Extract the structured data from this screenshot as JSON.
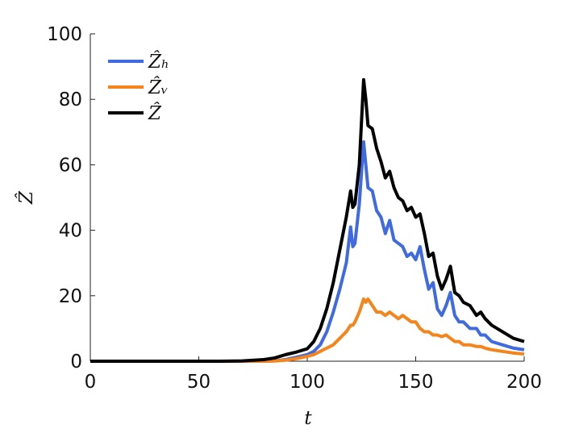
{
  "chart_data": {
    "type": "line",
    "xlabel": "t",
    "ylabel": "Ẑ",
    "x": [
      0,
      20,
      40,
      60,
      70,
      80,
      85,
      90,
      95,
      100,
      103,
      106,
      109,
      112,
      115,
      118,
      120,
      121,
      122,
      124,
      126,
      127,
      128,
      130,
      132,
      134,
      136,
      138,
      140,
      142,
      144,
      146,
      148,
      150,
      152,
      154,
      156,
      158,
      160,
      162,
      164,
      166,
      168,
      170,
      172,
      175,
      178,
      180,
      182,
      185,
      190,
      195,
      200
    ],
    "series": [
      {
        "name": "Ẑₕ",
        "color": "#3f6ae0",
        "values": [
          0,
          0,
          0,
          0,
          0,
          0,
          0.1,
          0.5,
          1.2,
          2,
          3,
          5,
          9,
          15,
          22,
          30,
          41,
          35,
          36,
          48,
          67,
          60,
          53,
          52,
          46,
          44,
          39,
          43,
          37,
          36,
          35,
          32,
          33,
          31,
          35,
          28,
          22,
          24,
          16,
          14,
          17,
          21,
          14,
          12,
          12,
          10,
          10,
          8,
          8,
          6,
          5,
          4,
          3.5
        ]
      },
      {
        "name": "Ẑᵥ",
        "color": "#f4841c",
        "values": [
          0,
          0,
          0,
          0,
          0,
          0,
          0.1,
          0.3,
          0.8,
          1.5,
          2,
          3,
          4,
          5,
          7,
          9,
          11,
          11,
          12,
          15,
          19,
          18,
          19,
          17,
          15,
          15,
          14,
          15,
          14,
          13,
          14,
          13,
          12,
          12,
          10,
          9,
          9,
          8,
          8,
          7.5,
          8,
          7,
          6,
          6,
          5,
          5,
          4.5,
          4.5,
          4,
          3.5,
          3,
          2.5,
          2.2
        ]
      },
      {
        "name": "Ẑ",
        "color": "#000000",
        "values": [
          0,
          0,
          0,
          0,
          0.1,
          0.5,
          1,
          2,
          2.8,
          3.8,
          6,
          10,
          16,
          24,
          34,
          44,
          52,
          47,
          48,
          60,
          86,
          80,
          72,
          71,
          65,
          61,
          56,
          58,
          53,
          50,
          49,
          46,
          47,
          44,
          45,
          39,
          32,
          33,
          26,
          22,
          25,
          29,
          21,
          20,
          18,
          17,
          14,
          15,
          13,
          11,
          9,
          7,
          6
        ]
      }
    ],
    "xlim": [
      0,
      200
    ],
    "xticks": [
      0,
      50,
      100,
      150,
      200
    ],
    "ylim": [
      0,
      100
    ],
    "yticks": [
      0,
      20,
      40,
      60,
      80,
      100
    ],
    "legend": "upper left"
  }
}
